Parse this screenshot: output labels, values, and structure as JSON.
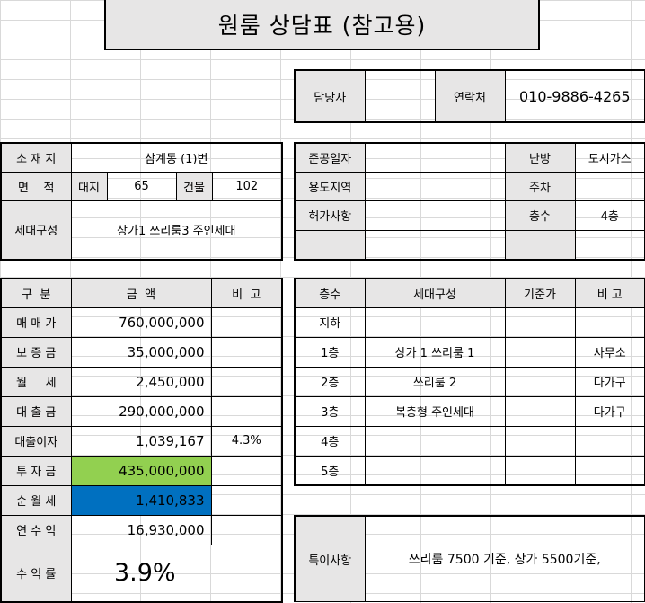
{
  "title": "원룸 상담표 (참고용)",
  "contact": {
    "manager_label": "담당자",
    "manager_value": "",
    "phone_label": "연락처",
    "phone_value": "010-9886-4265"
  },
  "property": {
    "location_label": "소 재 지",
    "location_value": "삼계동 (1)번",
    "area_label": "면    적",
    "land_label": "대지",
    "land_value": "65",
    "building_label": "건물",
    "building_value": "102",
    "household_label": "세대구성",
    "household_value": "상가1 쓰리룸3 주인세대"
  },
  "building_info": {
    "completion_label": "준공일자",
    "completion_value": "",
    "heating_label": "난방",
    "heating_value": "도시가스",
    "zoning_label": "용도지역",
    "zoning_value": "",
    "parking_label": "주차",
    "parking_value": "",
    "permit_label": "허가사항",
    "permit_value": "",
    "floors_label": "층수",
    "floors_value": "4층"
  },
  "finance": {
    "header": {
      "category": "구  분",
      "amount": "금  액",
      "note": "비  고"
    },
    "rows": [
      {
        "label": "매 매 가",
        "amount": "760,000,000",
        "note": ""
      },
      {
        "label": "보 증 금",
        "amount": "35,000,000",
        "note": ""
      },
      {
        "label": "월     세",
        "amount": "2,450,000",
        "note": ""
      },
      {
        "label": "대 출 금",
        "amount": "290,000,000",
        "note": ""
      },
      {
        "label": "대출이자",
        "amount": "1,039,167",
        "note": "4.3%"
      },
      {
        "label": "투 자 금",
        "amount": "435,000,000",
        "note": ""
      },
      {
        "label": "순 월 세",
        "amount": "1,410,833",
        "note": ""
      },
      {
        "label": "연 수 익",
        "amount": "16,930,000",
        "note": ""
      }
    ],
    "yield_label": "수 익 률",
    "yield_value": "3.9%"
  },
  "floors": {
    "header": {
      "floor": "층수",
      "composition": "세대구성",
      "base_price": "기준가",
      "note": "비 고"
    },
    "rows": [
      {
        "floor": "지하",
        "composition": "",
        "base_price": "",
        "note": ""
      },
      {
        "floor": "1층",
        "composition": "상가 1 쓰리룸 1",
        "base_price": "",
        "note": "사무소"
      },
      {
        "floor": "2층",
        "composition": "쓰리룸 2",
        "base_price": "",
        "note": "다가구"
      },
      {
        "floor": "3층",
        "composition": "복층형 주인세대",
        "base_price": "",
        "note": "다가구"
      },
      {
        "floor": "4층",
        "composition": "",
        "base_price": "",
        "note": ""
      },
      {
        "floor": "5층",
        "composition": "",
        "base_price": "",
        "note": ""
      }
    ]
  },
  "special": {
    "label": "특이사항",
    "value": "쓰리룸 7500 기준, 상가 5500기준,"
  },
  "colors": {
    "header_fill": "#e7e6e6",
    "investment_fill": "#92d050",
    "net_rent_fill": "#0070c0"
  }
}
